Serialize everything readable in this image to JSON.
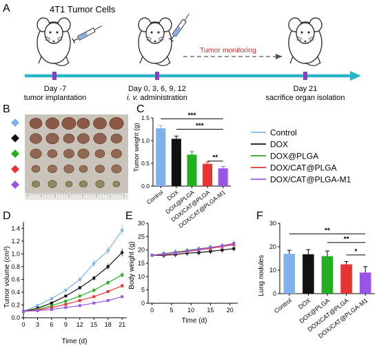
{
  "panel_letters": [
    "A",
    "B",
    "C",
    "D",
    "E",
    "F"
  ],
  "colors": {
    "Control": "#7fb2ea",
    "DOX": "#111111",
    "DOX@PLGA": "#22b022",
    "DOX/CAT@PLGA": "#e83333",
    "DOX/CAT@PLGA-M1": "#9a55e8",
    "timeline": "#2ab5c8"
  },
  "panelA": {
    "title": "4T1 Tumor Cells",
    "monitor": "Tumor monitoring",
    "ev1_day": "Day -7",
    "ev1_desc": "tumor implantation",
    "ev2_day": "Day 0, 3,  6, 9, 12",
    "ev2_iv": "i. v.",
    "ev2_rest": " administration",
    "ev3_day": "Day 21",
    "ev3_desc": "sacrifice organ isolation"
  },
  "legend": {
    "items": [
      "Control",
      "DOX",
      "DOX@PLGA",
      "DOX/CAT@PLGA",
      "DOX/CAT@PLGA-M1"
    ]
  },
  "chart_data": [
    {
      "panel": "C",
      "type": "bar",
      "categories": [
        "Control",
        "DOX",
        "DOX@PLGA",
        "DOX/CAT@PLGA",
        "DOX/CAT@PLGA-M1"
      ],
      "values": [
        1.27,
        1.04,
        0.69,
        0.49,
        0.39
      ],
      "errors": [
        0.06,
        0.06,
        0.07,
        0.04,
        0.04
      ],
      "ylabel": "Tumor weight (g)",
      "ylim": [
        0.0,
        1.5
      ],
      "yticks": [
        "0.0",
        "0.5",
        "1.0",
        "1.5"
      ],
      "significance": [
        "***",
        "***",
        "**"
      ]
    },
    {
      "panel": "D",
      "type": "line",
      "x": [
        0,
        3,
        6,
        9,
        12,
        15,
        18,
        21
      ],
      "xticks": [
        "0",
        "3",
        "6",
        "9",
        "12",
        "15",
        "18",
        "21"
      ],
      "yticks": [
        "0.0",
        "0.2",
        "0.4",
        "0.6",
        "0.8",
        "1.0",
        "1.2",
        "1.4"
      ],
      "xlabel": "Time (d)",
      "ylabel": "Tumor volume (cm³)",
      "xlim": [
        0,
        22
      ],
      "ylim": [
        0.0,
        1.5
      ],
      "series": [
        {
          "name": "Control",
          "values": [
            0.1,
            0.19,
            0.3,
            0.43,
            0.6,
            0.85,
            1.05,
            1.37
          ]
        },
        {
          "name": "DOX",
          "values": [
            0.1,
            0.15,
            0.23,
            0.34,
            0.47,
            0.62,
            0.8,
            1.02
          ]
        },
        {
          "name": "DOX@PLGA",
          "values": [
            0.1,
            0.13,
            0.19,
            0.26,
            0.34,
            0.43,
            0.55,
            0.67
          ]
        },
        {
          "name": "DOX/CAT@PLGA",
          "values": [
            0.1,
            0.12,
            0.16,
            0.21,
            0.27,
            0.33,
            0.41,
            0.5
          ]
        },
        {
          "name": "DOX/CAT@PLGA-M1",
          "values": [
            0.1,
            0.11,
            0.13,
            0.16,
            0.19,
            0.23,
            0.27,
            0.33
          ]
        }
      ]
    },
    {
      "panel": "E",
      "type": "line",
      "x": [
        0,
        3,
        6,
        9,
        12,
        15,
        18,
        21
      ],
      "xticks": [
        "0",
        "5",
        "10",
        "15",
        "20"
      ],
      "yticks": [
        "0",
        "5",
        "10",
        "15",
        "20",
        "25",
        "30"
      ],
      "xlabel": "Time (d)",
      "ylabel": "Body weight (g)",
      "xlim": [
        -1,
        22
      ],
      "ylim": [
        0,
        30
      ],
      "series": [
        {
          "name": "Control",
          "values": [
            18,
            18.5,
            19,
            19.5,
            20,
            20.8,
            21.5,
            22.5
          ]
        },
        {
          "name": "DOX",
          "values": [
            18,
            18,
            18.3,
            18.8,
            19,
            19.5,
            20,
            20.5
          ]
        },
        {
          "name": "DOX@PLGA",
          "values": [
            18,
            18.6,
            19.2,
            19.8,
            20.4,
            21,
            21.5,
            22.3
          ]
        },
        {
          "name": "DOX/CAT@PLGA",
          "values": [
            18,
            18.4,
            18.9,
            19.4,
            20,
            20.6,
            21.3,
            22
          ]
        },
        {
          "name": "DOX/CAT@PLGA-M1",
          "values": [
            18,
            18.5,
            19,
            19.6,
            20.2,
            20.9,
            21.6,
            22.4
          ]
        }
      ]
    },
    {
      "panel": "F",
      "type": "bar",
      "categories": [
        "Control",
        "DOX",
        "DOX@PLGA",
        "DOX/CAT@PLGA",
        "DOX/CAT@PLGA-M1"
      ],
      "values": [
        17,
        16.8,
        16,
        12.5,
        9
      ],
      "errors": [
        1.5,
        2,
        2.2,
        1.2,
        2.5
      ],
      "ylabel": "Lung nodules",
      "ylim": [
        0,
        30
      ],
      "yticks": [
        "0",
        "10",
        "20",
        "30"
      ],
      "significance": [
        "**",
        "**",
        "*"
      ]
    }
  ]
}
